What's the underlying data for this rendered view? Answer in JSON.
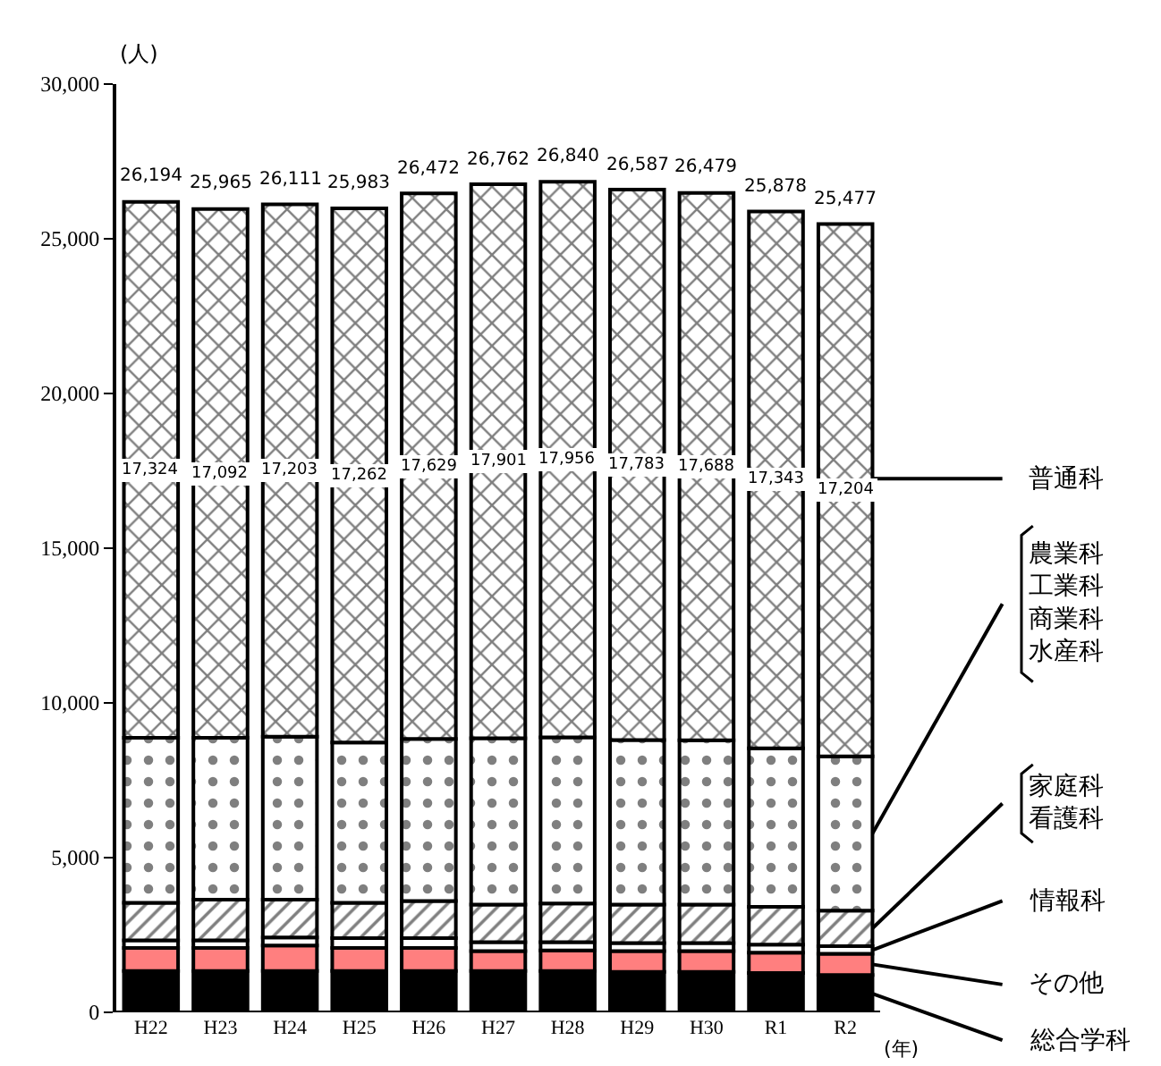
{
  "chart_data": {
    "type": "bar",
    "stacked": true,
    "ylabel": "(人)",
    "xlabel": "(年)",
    "categories": [
      "H22",
      "H23",
      "H24",
      "H25",
      "H26",
      "H27",
      "H28",
      "H29",
      "H30",
      "R1",
      "R2"
    ],
    "series": [
      {
        "name": "総合学科",
        "color": "#000000",
        "values": [
          1340,
          1340,
          1340,
          1340,
          1340,
          1340,
          1340,
          1310,
          1310,
          1270,
          1210
        ]
      },
      {
        "name": "その他",
        "color": "#ff7f7f",
        "values": [
          740,
          740,
          820,
          740,
          740,
          640,
          660,
          670,
          670,
          660,
          680
        ]
      },
      {
        "name": "情報科",
        "color": "#ffffff",
        "values": [
          250,
          250,
          260,
          320,
          320,
          290,
          270,
          260,
          260,
          260,
          250
        ]
      },
      {
        "name": "家庭科看護科",
        "color": "#000000",
        "values": [
          1210,
          1310,
          1220,
          1140,
          1200,
          1210,
          1250,
          1240,
          1240,
          1220,
          1150
        ]
      },
      {
        "name": "農業科工業科商業科水産科",
        "color": "#000000",
        "values": [
          5330,
          5230,
          5270,
          5180,
          5240,
          5380,
          5364,
          5324,
          5310,
          5125,
          4980
        ]
      },
      {
        "name": "普通科",
        "color": "#000000",
        "values": [
          17324,
          17092,
          17203,
          17262,
          17629,
          17901,
          17956,
          17783,
          17688,
          17343,
          17204
        ],
        "value_labels": [
          "17,324",
          "17,092",
          "17,203",
          "17,262",
          "17,629",
          "17,901",
          "17,956",
          "17,783",
          "17,688",
          "17,343",
          "17,204"
        ]
      }
    ],
    "totals": [
      "26,194",
      "25,965",
      "26,111",
      "25,983",
      "26,472",
      "26,762",
      "26,840",
      "26,587",
      "26,479",
      "25,878",
      "25,477"
    ],
    "ylim": [
      0,
      30000
    ],
    "yticks": [
      0,
      {
        "value": 5000,
        "label": "5,000"
      },
      {
        "value": 10000,
        "label": "10,000"
      },
      {
        "value": 15000,
        "label": "15,000"
      },
      {
        "value": 20000,
        "label": "20,000"
      },
      {
        "value": 25000,
        "label": "25,000"
      },
      {
        "value": 30000,
        "label": "30,000"
      }
    ],
    "legend": "right"
  }
}
